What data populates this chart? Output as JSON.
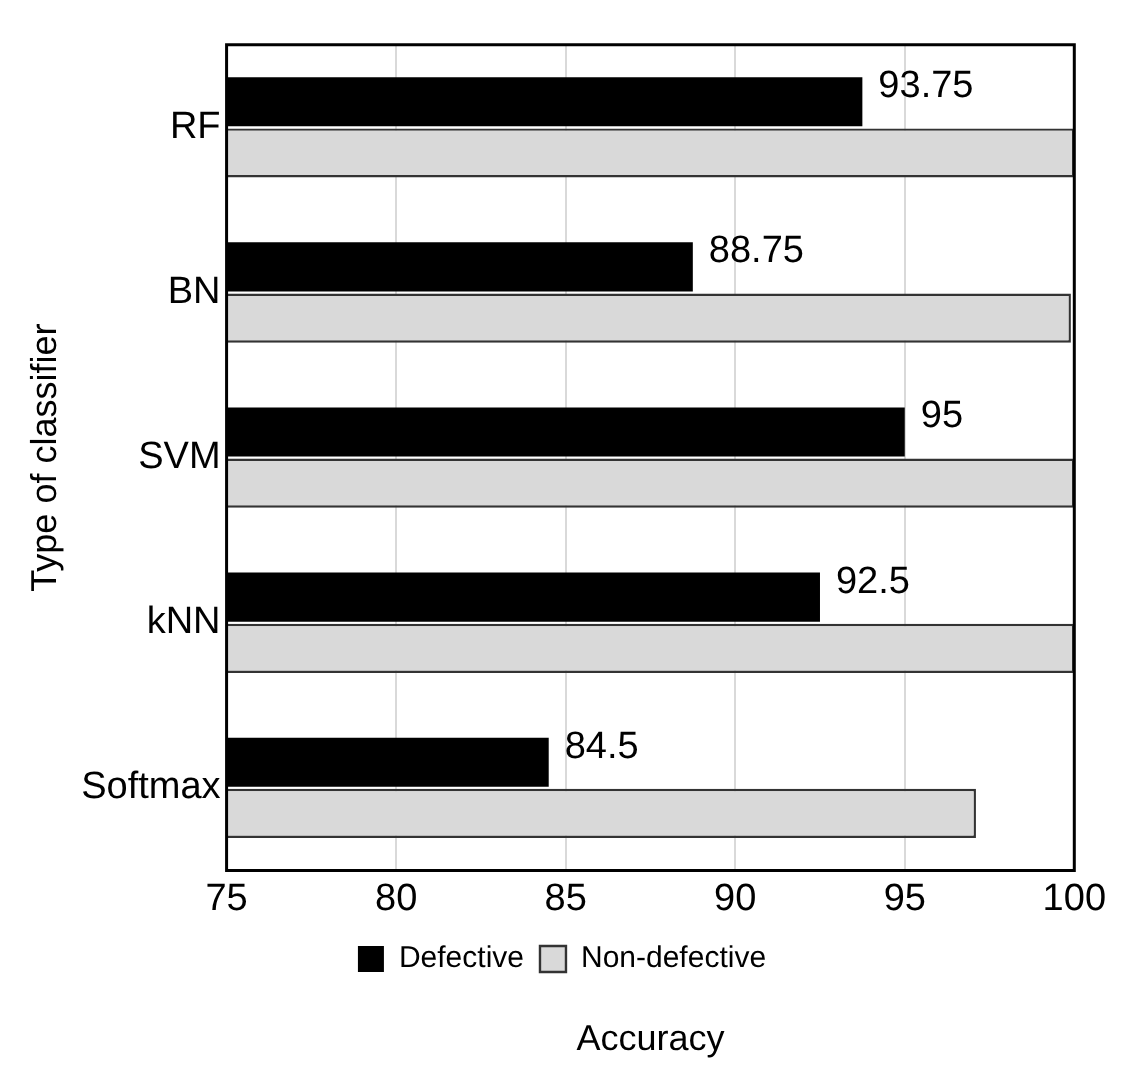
{
  "chart_data": {
    "type": "bar",
    "orientation": "horizontal",
    "xlabel": "Accuracy",
    "ylabel": "Type of classifier",
    "categories": [
      "RF",
      "BN",
      "SVM",
      "kNN",
      "Softmax"
    ],
    "series": [
      {
        "name": "Defective",
        "color": "#000000",
        "values": [
          93.75,
          88.75,
          95,
          92.5,
          84.5
        ],
        "value_labels": [
          "93.75",
          "88.75",
          "95",
          "92.5",
          "84.5"
        ]
      },
      {
        "name": "Non-defective",
        "color": "#d9d9d9",
        "line_style": "dashed",
        "values": [
          100,
          99.9,
          100,
          100,
          97.1
        ]
      }
    ],
    "xlim": [
      75,
      100
    ],
    "xticks": [
      75,
      80,
      85,
      90,
      95,
      100
    ],
    "grid": "x",
    "legend": "bottom"
  }
}
